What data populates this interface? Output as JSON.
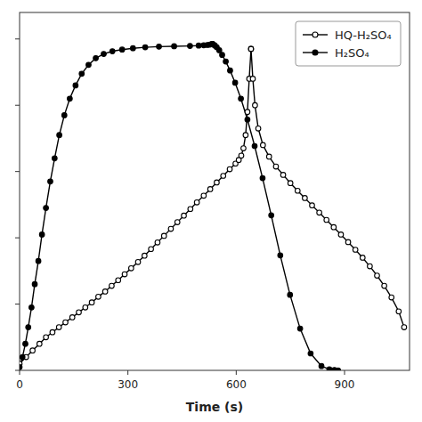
{
  "chart_data": {
    "type": "line",
    "x_label": "Time (s)",
    "xlim": [
      0,
      1080
    ],
    "ylim": [
      0,
      1.08
    ],
    "xticks": [
      0,
      300,
      600,
      900
    ],
    "yticks": [
      0,
      0.2,
      0.4,
      0.6,
      0.8,
      1.0
    ],
    "tick_labels": "x",
    "grid": false,
    "legend": "upper right",
    "series": [
      {
        "name": "HQ-H₂SO₄",
        "color": "black",
        "marker": "open-circle",
        "line_style": "solid",
        "x": [
          0,
          18,
          36,
          55,
          73,
          91,
          109,
          127,
          146,
          164,
          182,
          200,
          218,
          237,
          255,
          273,
          291,
          309,
          328,
          346,
          364,
          382,
          400,
          419,
          437,
          455,
          473,
          491,
          510,
          528,
          546,
          564,
          582,
          598,
          607,
          614,
          620,
          626,
          631,
          636,
          641,
          641,
          646,
          652,
          661,
          674,
          691,
          710,
          730,
          750,
          770,
          790,
          810,
          830,
          850,
          870,
          890,
          910,
          930,
          950,
          970,
          990,
          1010,
          1030,
          1050,
          1065
        ],
        "values": [
          0.02,
          0.04,
          0.06,
          0.08,
          0.1,
          0.115,
          0.13,
          0.145,
          0.16,
          0.175,
          0.19,
          0.205,
          0.222,
          0.238,
          0.255,
          0.272,
          0.29,
          0.308,
          0.327,
          0.346,
          0.366,
          0.386,
          0.406,
          0.427,
          0.447,
          0.467,
          0.487,
          0.507,
          0.527,
          0.547,
          0.567,
          0.587,
          0.607,
          0.624,
          0.635,
          0.648,
          0.67,
          0.71,
          0.78,
          0.88,
          0.97,
          0.97,
          0.88,
          0.8,
          0.73,
          0.68,
          0.645,
          0.615,
          0.59,
          0.565,
          0.542,
          0.52,
          0.498,
          0.476,
          0.454,
          0.432,
          0.41,
          0.387,
          0.364,
          0.34,
          0.314,
          0.286,
          0.255,
          0.22,
          0.178,
          0.13
        ]
      },
      {
        "name": "H₂SO₄",
        "color": "black",
        "marker": "circle",
        "line_style": "solid",
        "x": [
          0,
          8,
          16,
          24,
          33,
          42,
          52,
          62,
          73,
          85,
          97,
          110,
          124,
          139,
          155,
          172,
          191,
          211,
          233,
          257,
          284,
          314,
          348,
          386,
          428,
          472,
          496,
          510,
          520,
          527,
          531,
          534,
          534,
          537,
          541,
          546,
          553,
          561,
          571,
          583,
          597,
          613,
          631,
          651,
          673,
          697,
          722,
          749,
          777,
          806,
          836,
          858,
          872,
          882
        ],
        "values": [
          0.01,
          0.04,
          0.08,
          0.13,
          0.19,
          0.26,
          0.33,
          0.41,
          0.49,
          0.57,
          0.64,
          0.71,
          0.77,
          0.82,
          0.86,
          0.895,
          0.922,
          0.942,
          0.955,
          0.963,
          0.968,
          0.972,
          0.975,
          0.977,
          0.978,
          0.979,
          0.98,
          0.981,
          0.982,
          0.983,
          0.984,
          0.985,
          0.985,
          0.983,
          0.98,
          0.975,
          0.966,
          0.952,
          0.932,
          0.905,
          0.868,
          0.82,
          0.757,
          0.677,
          0.58,
          0.468,
          0.347,
          0.228,
          0.126,
          0.051,
          0.013,
          0.003,
          0.001,
          0.0
        ]
      }
    ]
  }
}
